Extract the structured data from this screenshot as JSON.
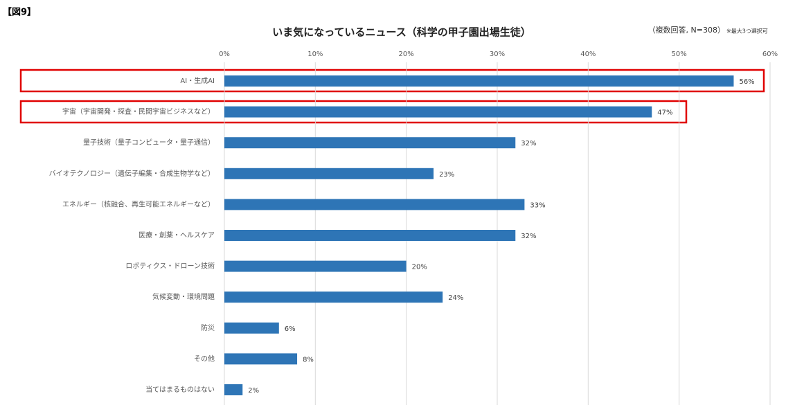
{
  "chart_data": {
    "type": "hbar",
    "figure_label": "【図9】",
    "title": "いま気になっているニュース（科学の甲子園出場生徒）",
    "note": "（複数回答, N=308）",
    "note_small": "※最大3つ選択可",
    "categories": [
      "AI・生成AI",
      "宇宙（宇宙開発・探査・民間宇宙ビジネスなど）",
      "量子技術（量子コンピュータ・量子通信）",
      "バイオテクノロジー（遺伝子編集・合成生物学など）",
      "エネルギー（核融合、再生可能エネルギーなど）",
      "医療・創薬・ヘルスケア",
      "ロボティクス・ドローン技術",
      "気候変動・環境問題",
      "防災",
      "その他",
      "当てはまるものはない"
    ],
    "values": [
      56,
      47,
      32,
      23,
      33,
      32,
      20,
      24,
      6,
      8,
      2
    ],
    "value_labels": [
      "56%",
      "47%",
      "32%",
      "23%",
      "33%",
      "32%",
      "20%",
      "24%",
      "6%",
      "8%",
      "2%"
    ],
    "color": "#2e75b6",
    "xlim": [
      0,
      60
    ],
    "xticks": [
      {
        "value": 0,
        "label": "0%"
      },
      {
        "value": 10,
        "label": "10%"
      },
      {
        "value": 20,
        "label": "20%"
      },
      {
        "value": 30,
        "label": "30%"
      },
      {
        "value": 40,
        "label": "40%"
      },
      {
        "value": 50,
        "label": "50%"
      },
      {
        "value": 60,
        "label": "60%"
      }
    ],
    "grid": true
  }
}
